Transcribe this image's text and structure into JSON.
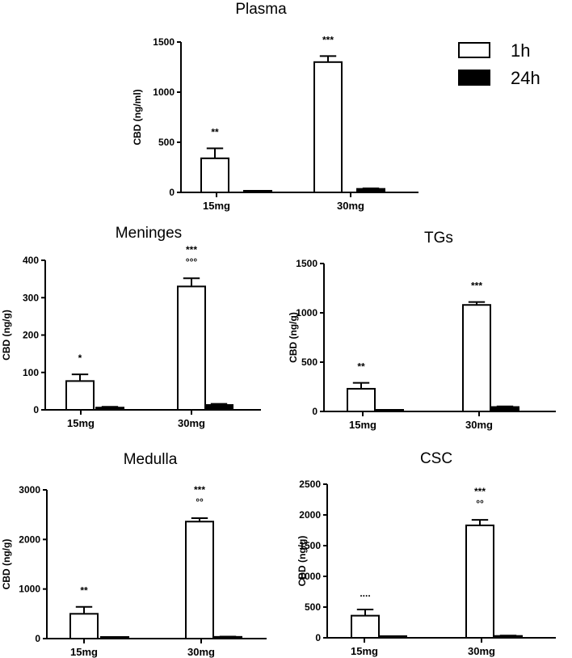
{
  "legend": {
    "position": "top-right",
    "items": [
      {
        "label": "1h",
        "fill": "#ffffff"
      },
      {
        "label": "24h",
        "fill": "#000000"
      }
    ]
  },
  "chart_data": [
    {
      "type": "bar",
      "title": "Plasma",
      "ylabel": "CBD (ng/ml)",
      "ylim": [
        0,
        1500
      ],
      "yticks": [
        0,
        500,
        1000,
        1500
      ],
      "categories": [
        "15mg",
        "30mg"
      ],
      "series": [
        {
          "name": "1h",
          "values": [
            340,
            1300
          ],
          "errors": [
            100,
            60
          ]
        },
        {
          "name": "24h",
          "values": [
            8,
            35
          ],
          "errors": [
            3,
            5
          ]
        }
      ],
      "annotations": [
        {
          "category": "15mg",
          "series": "1h",
          "lines": [
            "**"
          ]
        },
        {
          "category": "30mg",
          "series": "1h",
          "lines": [
            "***"
          ]
        }
      ]
    },
    {
      "type": "bar",
      "title": "Meninges",
      "ylabel": "CBD (ng/g)",
      "ylim": [
        0,
        400
      ],
      "yticks": [
        0,
        100,
        200,
        300,
        400
      ],
      "categories": [
        "15mg",
        "30mg"
      ],
      "series": [
        {
          "name": "1h",
          "values": [
            77,
            330
          ],
          "errors": [
            18,
            22
          ]
        },
        {
          "name": "24h",
          "values": [
            6,
            13
          ],
          "errors": [
            2,
            3
          ]
        }
      ],
      "annotations": [
        {
          "category": "15mg",
          "series": "1h",
          "lines": [
            "*"
          ]
        },
        {
          "category": "30mg",
          "series": "1h",
          "lines": [
            "***",
            "°°°"
          ]
        }
      ]
    },
    {
      "type": "bar",
      "title": "TGs",
      "ylabel": "CBD (ng/g)",
      "ylim": [
        0,
        1500
      ],
      "yticks": [
        0,
        500,
        1000,
        1500
      ],
      "categories": [
        "15mg",
        "30mg"
      ],
      "series": [
        {
          "name": "1h",
          "values": [
            230,
            1080
          ],
          "errors": [
            60,
            30
          ]
        },
        {
          "name": "24h",
          "values": [
            12,
            45
          ],
          "errors": [
            4,
            6
          ]
        }
      ],
      "annotations": [
        {
          "category": "15mg",
          "series": "1h",
          "lines": [
            "**"
          ]
        },
        {
          "category": "30mg",
          "series": "1h",
          "lines": [
            "***"
          ]
        }
      ]
    },
    {
      "type": "bar",
      "title": "Medulla",
      "ylabel": "CBD (ng/g)",
      "ylim": [
        0,
        3000
      ],
      "yticks": [
        0,
        1000,
        2000,
        3000
      ],
      "categories": [
        "15mg",
        "30mg"
      ],
      "series": [
        {
          "name": "1h",
          "values": [
            500,
            2360
          ],
          "errors": [
            140,
            70
          ]
        },
        {
          "name": "24h",
          "values": [
            10,
            35
          ],
          "errors": [
            4,
            6
          ]
        }
      ],
      "annotations": [
        {
          "category": "15mg",
          "series": "1h",
          "lines": [
            "**"
          ]
        },
        {
          "category": "30mg",
          "series": "1h",
          "lines": [
            "***",
            "°°"
          ]
        }
      ]
    },
    {
      "type": "bar",
      "title": "CSC",
      "ylabel": "CBD (ng/g)",
      "ylim": [
        0,
        2500
      ],
      "yticks": [
        0,
        500,
        1000,
        1500,
        2000,
        2500
      ],
      "categories": [
        "15mg",
        "30mg"
      ],
      "series": [
        {
          "name": "1h",
          "values": [
            360,
            1830
          ],
          "errors": [
            100,
            90
          ]
        },
        {
          "name": "24h",
          "values": [
            10,
            30
          ],
          "errors": [
            4,
            6
          ]
        }
      ],
      "annotations": [
        {
          "category": "15mg",
          "series": "1h",
          "lines": [
            "...."
          ]
        },
        {
          "category": "30mg",
          "series": "1h",
          "lines": [
            "***",
            "°°"
          ]
        }
      ]
    }
  ]
}
